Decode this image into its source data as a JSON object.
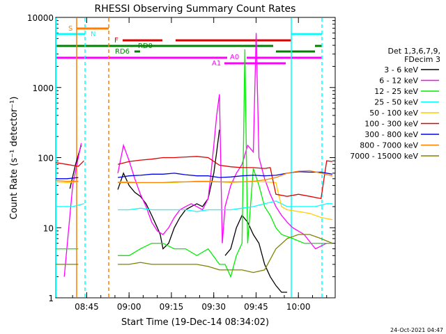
{
  "chart_data": {
    "type": "line",
    "title": "RHESSI Observing Summary Count Rates",
    "xlabel": "Start Time (19-Dec-14 08:34:02)",
    "ylabel": "Count Rate (s⁻¹ detector⁻¹)",
    "yscale": "log",
    "ylim": [
      1,
      10000
    ],
    "xlim_minutes": [
      0,
      99
    ],
    "x_ticks": [
      {
        "label": "08:45",
        "minute": 10.97
      },
      {
        "label": "09:00",
        "minute": 25.97
      },
      {
        "label": "09:15",
        "minute": 40.97
      },
      {
        "label": "09:30",
        "minute": 55.97
      },
      {
        "label": "09:45",
        "minute": 70.97
      },
      {
        "label": "10:00",
        "minute": 85.97
      }
    ],
    "y_ticks": [
      {
        "label": "1",
        "value": 1
      },
      {
        "label": "10",
        "value": 10
      },
      {
        "label": "100",
        "value": 100
      },
      {
        "label": "1000",
        "value": 1000
      },
      {
        "label": "10000",
        "value": 10000
      }
    ],
    "legend_header": [
      "Det 1,3,6,7,9,",
      "FDecim 3"
    ],
    "legend_position": "right",
    "grid": false,
    "footer": "24-Oct-2021 04:47",
    "flags": [
      {
        "label": "S",
        "color": "#ff8000"
      },
      {
        "label": "N",
        "color": "#00ffff"
      },
      {
        "label": "F",
        "color": "#e00000"
      },
      {
        "label": "RD0",
        "color": "#008000"
      },
      {
        "label": "RD6",
        "color": "#008000"
      },
      {
        "label": "A0",
        "color": "#ff00ff"
      },
      {
        "label": "A1",
        "color": "#ff00ff"
      }
    ],
    "series": [
      {
        "name": "3 - 6 keV",
        "color": "#000000",
        "points": [
          [
            5,
            36
          ],
          [
            7,
            80
          ],
          [
            9,
            150
          ],
          [
            12,
            null
          ],
          [
            21,
            null
          ],
          [
            22,
            35
          ],
          [
            24,
            60
          ],
          [
            26,
            40
          ],
          [
            28,
            32
          ],
          [
            30,
            28
          ],
          [
            32,
            22
          ],
          [
            34,
            15
          ],
          [
            36,
            10
          ],
          [
            37,
            8
          ],
          [
            38,
            5
          ],
          [
            40,
            6
          ],
          [
            42,
            10
          ],
          [
            44,
            14
          ],
          [
            46,
            18
          ],
          [
            48,
            20
          ],
          [
            50,
            22
          ],
          [
            52,
            20
          ],
          [
            54,
            26
          ],
          [
            55,
            40
          ],
          [
            56,
            60
          ],
          [
            57,
            120
          ],
          [
            58,
            250
          ],
          [
            58.5,
            null
          ],
          [
            60,
            4
          ],
          [
            62,
            5
          ],
          [
            64,
            10
          ],
          [
            66,
            15
          ],
          [
            68,
            12
          ],
          [
            70,
            8
          ],
          [
            72,
            6
          ],
          [
            74,
            3
          ],
          [
            76,
            2
          ],
          [
            78,
            1.5
          ],
          [
            80,
            1.2
          ],
          [
            82,
            1.2
          ]
        ]
      },
      {
        "name": "6 - 12 keV",
        "color": "#ff00ff",
        "points": [
          [
            3,
            2
          ],
          [
            6,
            40
          ],
          [
            9,
            160
          ],
          [
            12,
            null
          ],
          [
            21,
            null
          ],
          [
            22,
            60
          ],
          [
            24,
            150
          ],
          [
            26,
            90
          ],
          [
            28,
            50
          ],
          [
            30,
            30
          ],
          [
            32,
            20
          ],
          [
            34,
            12
          ],
          [
            36,
            9
          ],
          [
            38,
            8
          ],
          [
            40,
            10
          ],
          [
            42,
            14
          ],
          [
            44,
            18
          ],
          [
            46,
            20
          ],
          [
            48,
            22
          ],
          [
            50,
            20
          ],
          [
            52,
            18
          ],
          [
            54,
            26
          ],
          [
            55,
            60
          ],
          [
            56,
            150
          ],
          [
            57,
            400
          ],
          [
            58,
            800
          ],
          [
            59,
            6
          ],
          [
            60,
            20
          ],
          [
            62,
            40
          ],
          [
            64,
            60
          ],
          [
            66,
            80
          ],
          [
            68,
            150
          ],
          [
            70,
            120
          ],
          [
            71,
            6000
          ],
          [
            72,
            100
          ],
          [
            74,
            50
          ],
          [
            76,
            30
          ],
          [
            78,
            20
          ],
          [
            80,
            15
          ],
          [
            82,
            12
          ],
          [
            84,
            10
          ],
          [
            88,
            8
          ],
          [
            92,
            5
          ],
          [
            96,
            6
          ],
          [
            98,
            6
          ]
        ]
      },
      {
        "name": "12 - 25 keV",
        "color": "#00ee00",
        "points": [
          [
            0,
            5
          ],
          [
            4,
            5
          ],
          [
            8,
            5
          ],
          [
            12,
            null
          ],
          [
            21,
            null
          ],
          [
            22,
            4
          ],
          [
            26,
            4
          ],
          [
            30,
            5
          ],
          [
            34,
            6
          ],
          [
            38,
            6
          ],
          [
            42,
            5
          ],
          [
            46,
            5
          ],
          [
            50,
            4
          ],
          [
            54,
            5
          ],
          [
            58,
            3
          ],
          [
            60,
            3
          ],
          [
            62,
            2
          ],
          [
            64,
            4
          ],
          [
            66,
            6
          ],
          [
            67,
            3500
          ],
          [
            68,
            6
          ],
          [
            70,
            70
          ],
          [
            72,
            40
          ],
          [
            74,
            20
          ],
          [
            76,
            15
          ],
          [
            78,
            10
          ],
          [
            80,
            8
          ],
          [
            84,
            7
          ],
          [
            88,
            6
          ],
          [
            92,
            6
          ],
          [
            96,
            6
          ],
          [
            98,
            6
          ]
        ]
      },
      {
        "name": "25 - 50 keV",
        "color": "#00ffff",
        "points": [
          [
            0,
            20
          ],
          [
            2,
            20
          ],
          [
            6,
            20
          ],
          [
            10,
            22
          ],
          [
            12,
            null
          ],
          [
            21,
            null
          ],
          [
            22,
            18
          ],
          [
            26,
            18
          ],
          [
            30,
            19
          ],
          [
            34,
            18
          ],
          [
            38,
            18
          ],
          [
            42,
            18
          ],
          [
            46,
            18
          ],
          [
            50,
            17
          ],
          [
            54,
            18
          ],
          [
            58,
            18
          ],
          [
            62,
            18
          ],
          [
            66,
            19
          ],
          [
            70,
            20
          ],
          [
            74,
            22
          ],
          [
            78,
            24
          ],
          [
            80,
            22
          ],
          [
            82,
            20
          ],
          [
            84,
            20
          ],
          [
            88,
            20
          ],
          [
            92,
            20
          ],
          [
            96,
            22
          ],
          [
            98,
            22
          ]
        ]
      },
      {
        "name": "50 - 100 keV",
        "color": "#ffcc00",
        "points": [
          [
            0,
            45
          ],
          [
            4,
            44
          ],
          [
            8,
            45
          ],
          [
            12,
            null
          ],
          [
            21,
            null
          ],
          [
            22,
            45
          ],
          [
            26,
            45
          ],
          [
            30,
            44
          ],
          [
            34,
            44
          ],
          [
            38,
            44
          ],
          [
            42,
            44
          ],
          [
            46,
            45
          ],
          [
            50,
            45
          ],
          [
            54,
            45
          ],
          [
            58,
            45
          ],
          [
            62,
            44
          ],
          [
            66,
            45
          ],
          [
            70,
            46
          ],
          [
            74,
            45
          ],
          [
            78,
            44
          ],
          [
            80,
            20
          ],
          [
            82,
            18
          ],
          [
            86,
            17
          ],
          [
            90,
            16
          ],
          [
            94,
            14
          ],
          [
            98,
            13
          ]
        ]
      },
      {
        "name": "100 - 300 keV",
        "color": "#e00000",
        "points": [
          [
            0,
            85
          ],
          [
            4,
            80
          ],
          [
            8,
            75
          ],
          [
            10,
            90
          ],
          [
            12,
            null
          ],
          [
            21,
            null
          ],
          [
            22,
            80
          ],
          [
            26,
            88
          ],
          [
            30,
            92
          ],
          [
            34,
            95
          ],
          [
            38,
            100
          ],
          [
            42,
            100
          ],
          [
            46,
            102
          ],
          [
            50,
            104
          ],
          [
            54,
            100
          ],
          [
            58,
            78
          ],
          [
            62,
            74
          ],
          [
            66,
            72
          ],
          [
            70,
            72
          ],
          [
            74,
            70
          ],
          [
            76,
            72
          ],
          [
            78,
            30
          ],
          [
            82,
            28
          ],
          [
            86,
            30
          ],
          [
            90,
            28
          ],
          [
            94,
            26
          ],
          [
            96,
            90
          ],
          [
            98,
            88
          ]
        ]
      },
      {
        "name": "300 - 800 keV",
        "color": "#0000e6",
        "points": [
          [
            0,
            50
          ],
          [
            4,
            50
          ],
          [
            8,
            52
          ],
          [
            12,
            null
          ],
          [
            21,
            null
          ],
          [
            22,
            52
          ],
          [
            26,
            55
          ],
          [
            30,
            56
          ],
          [
            34,
            58
          ],
          [
            38,
            58
          ],
          [
            42,
            60
          ],
          [
            46,
            57
          ],
          [
            50,
            55
          ],
          [
            54,
            55
          ],
          [
            58,
            52
          ],
          [
            62,
            53
          ],
          [
            66,
            55
          ],
          [
            70,
            56
          ],
          [
            74,
            55
          ],
          [
            78,
            56
          ],
          [
            82,
            60
          ],
          [
            86,
            63
          ],
          [
            90,
            62
          ],
          [
            94,
            62
          ],
          [
            98,
            58
          ]
        ]
      },
      {
        "name": "800 - 7000 keV",
        "color": "#ff8000",
        "points": [
          [
            0,
            47
          ],
          [
            4,
            46
          ],
          [
            8,
            46
          ],
          [
            12,
            null
          ],
          [
            21,
            null
          ],
          [
            22,
            44
          ],
          [
            26,
            44
          ],
          [
            30,
            44
          ],
          [
            34,
            44
          ],
          [
            38,
            44
          ],
          [
            42,
            45
          ],
          [
            46,
            45
          ],
          [
            50,
            46
          ],
          [
            54,
            46
          ],
          [
            58,
            45
          ],
          [
            62,
            45
          ],
          [
            66,
            45
          ],
          [
            70,
            46
          ],
          [
            74,
            48
          ],
          [
            78,
            52
          ],
          [
            82,
            60
          ],
          [
            86,
            64
          ],
          [
            90,
            65
          ],
          [
            94,
            60
          ],
          [
            98,
            55
          ]
        ]
      },
      {
        "name": "7000 - 15000 keV",
        "color": "#808000",
        "points": [
          [
            0,
            3
          ],
          [
            4,
            3
          ],
          [
            8,
            3
          ],
          [
            12,
            null
          ],
          [
            21,
            null
          ],
          [
            22,
            3
          ],
          [
            26,
            3
          ],
          [
            30,
            3.2
          ],
          [
            34,
            3
          ],
          [
            38,
            3
          ],
          [
            42,
            3
          ],
          [
            46,
            3
          ],
          [
            50,
            3
          ],
          [
            54,
            2.8
          ],
          [
            58,
            2.5
          ],
          [
            62,
            2.5
          ],
          [
            66,
            2.5
          ],
          [
            70,
            2.3
          ],
          [
            74,
            2.5
          ],
          [
            78,
            5
          ],
          [
            82,
            7
          ],
          [
            86,
            8
          ],
          [
            90,
            8
          ],
          [
            94,
            7
          ],
          [
            98,
            6
          ]
        ]
      }
    ]
  }
}
